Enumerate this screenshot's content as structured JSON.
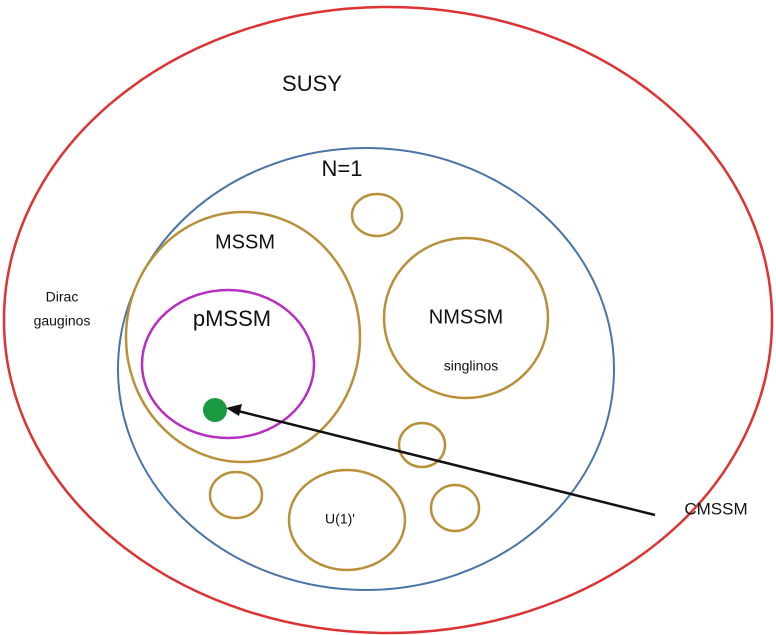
{
  "diagram": {
    "labels": {
      "susy": "SUSY",
      "n1": "N=1",
      "mssm": "MSSM",
      "dirac": "Dirac",
      "gauginos": "gauginos",
      "pmssm": "pMSSM",
      "nmssm": "NMSSM",
      "singlinos": "singlinos",
      "u1": "U(1)'",
      "cmssm": "CMSSM"
    }
  }
}
